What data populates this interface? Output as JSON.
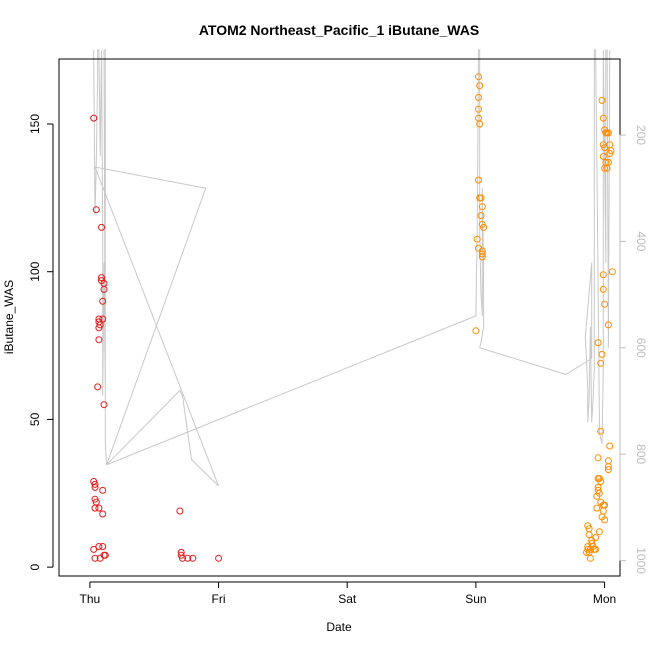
{
  "chart_data": {
    "type": "scatter",
    "title": "ATOM2 Northeast_Pacific_1 iButane_WAS",
    "xlabel": "Date",
    "ylabel": "iButane_WAS",
    "x_unit": "days",
    "x_ticks": [
      {
        "label": "Thu",
        "x": 0
      },
      {
        "label": "Fri",
        "x": 1
      },
      {
        "label": "Sat",
        "x": 2
      },
      {
        "label": "Sun",
        "x": 3
      },
      {
        "label": "Mon",
        "x": 4
      }
    ],
    "y_ticks": [
      0,
      50,
      100,
      150
    ],
    "xlim": [
      -0.24,
      4.12
    ],
    "ylim": [
      -3,
      172
    ],
    "y2_ticks": [
      200,
      400,
      600,
      800,
      1000
    ],
    "y2lim": [
      1029,
      57
    ],
    "y2_reversed": true,
    "grid": false,
    "series": [
      {
        "color": "#e41a1c",
        "marker": "open-circle",
        "points": [
          [
            0.03,
            152
          ],
          [
            0.05,
            121
          ],
          [
            0.06,
            61
          ],
          [
            0.07,
            84
          ],
          [
            0.07,
            83
          ],
          [
            0.08,
            82
          ],
          [
            0.07,
            81
          ],
          [
            0.07,
            77
          ],
          [
            0.09,
            98
          ],
          [
            0.09,
            97
          ],
          [
            0.11,
            96
          ],
          [
            0.11,
            94
          ],
          [
            0.1,
            90
          ],
          [
            0.1,
            84
          ],
          [
            0.09,
            115
          ],
          [
            0.11,
            55
          ],
          [
            0.03,
            29
          ],
          [
            0.04,
            28
          ],
          [
            0.04,
            27
          ],
          [
            0.04,
            23
          ],
          [
            0.05,
            22
          ],
          [
            0.04,
            20
          ],
          [
            0.07,
            20
          ],
          [
            0.1,
            18
          ],
          [
            0.1,
            26
          ],
          [
            0.03,
            6
          ],
          [
            0.04,
            3
          ],
          [
            0.07,
            7
          ],
          [
            0.1,
            7
          ],
          [
            0.08,
            3
          ],
          [
            0.11,
            4
          ],
          [
            0.12,
            4
          ],
          [
            0.7,
            19
          ],
          [
            0.71,
            5
          ],
          [
            0.71,
            4
          ],
          [
            0.72,
            3
          ],
          [
            0.76,
            3
          ],
          [
            0.8,
            3
          ],
          [
            1.0,
            3
          ]
        ]
      },
      {
        "color": "#ff8c00",
        "marker": "open-circle",
        "points": [
          [
            3.0,
            80
          ],
          [
            3.02,
            166
          ],
          [
            3.02,
            159
          ],
          [
            3.03,
            163
          ],
          [
            3.02,
            155
          ],
          [
            3.02,
            152
          ],
          [
            3.03,
            150
          ],
          [
            3.02,
            131
          ],
          [
            3.04,
            125
          ],
          [
            3.03,
            125
          ],
          [
            3.05,
            122
          ],
          [
            3.04,
            119
          ],
          [
            3.05,
            116
          ],
          [
            3.06,
            115
          ],
          [
            3.01,
            111
          ],
          [
            3.02,
            108
          ],
          [
            3.05,
            107
          ],
          [
            3.05,
            106
          ],
          [
            3.05,
            105
          ],
          [
            3.86,
            5
          ],
          [
            3.87,
            6
          ],
          [
            3.87,
            7
          ],
          [
            3.88,
            5
          ],
          [
            3.89,
            3
          ],
          [
            3.89,
            6
          ],
          [
            3.9,
            8
          ],
          [
            3.91,
            7
          ],
          [
            3.92,
            6
          ],
          [
            3.93,
            6
          ],
          [
            3.87,
            14
          ],
          [
            3.88,
            13
          ],
          [
            3.88,
            11
          ],
          [
            3.9,
            9
          ],
          [
            3.93,
            10
          ],
          [
            3.94,
            20
          ],
          [
            3.94,
            24
          ],
          [
            3.95,
            26
          ],
          [
            3.95,
            27
          ],
          [
            3.96,
            25
          ],
          [
            3.95,
            30
          ],
          [
            3.96,
            30
          ],
          [
            3.95,
            37
          ],
          [
            3.97,
            29
          ],
          [
            3.97,
            22
          ],
          [
            3.98,
            17
          ],
          [
            3.99,
            19
          ],
          [
            3.99,
            21
          ],
          [
            4.0,
            16
          ],
          [
            4.0,
            21
          ],
          [
            3.96,
            12
          ],
          [
            3.97,
            46
          ],
          [
            4.03,
            33
          ],
          [
            4.03,
            34
          ],
          [
            4.03,
            36
          ],
          [
            4.04,
            41
          ],
          [
            3.95,
            76
          ],
          [
            3.97,
            69
          ],
          [
            3.98,
            72
          ],
          [
            4.03,
            82
          ],
          [
            4.06,
            100
          ],
          [
            3.99,
            99
          ],
          [
            3.99,
            94
          ],
          [
            4.0,
            89
          ],
          [
            3.98,
            158
          ],
          [
            3.99,
            152
          ],
          [
            4.0,
            148
          ],
          [
            4.01,
            147
          ],
          [
            4.02,
            147
          ],
          [
            4.03,
            147
          ],
          [
            4.04,
            143
          ],
          [
            4.05,
            141
          ],
          [
            4.04,
            140
          ],
          [
            4.0,
            142
          ],
          [
            3.99,
            143
          ],
          [
            4.01,
            137
          ],
          [
            4.02,
            135
          ],
          [
            4.03,
            137
          ],
          [
            3.99,
            139
          ],
          [
            4.0,
            135
          ]
        ]
      }
    ],
    "altitude_trace": {
      "color": "#c8c8c8",
      "axis": "right",
      "points": [
        [
          0.03,
          40
        ],
        [
          0.04,
          350
        ],
        [
          0.05,
          250
        ],
        [
          0.06,
          100
        ],
        [
          0.06,
          40
        ],
        [
          0.07,
          40
        ],
        [
          0.08,
          240
        ],
        [
          0.09,
          40
        ],
        [
          0.09,
          40
        ],
        [
          0.1,
          380
        ],
        [
          0.1,
          620
        ],
        [
          0.1,
          690
        ],
        [
          0.11,
          440
        ],
        [
          0.12,
          680
        ],
        [
          0.11,
          40
        ],
        [
          0.12,
          40
        ],
        [
          0.12,
          780
        ],
        [
          0.13,
          820
        ],
        [
          0.9,
          300
        ],
        [
          0.04,
          260
        ],
        [
          1.0,
          860
        ],
        [
          0.79,
          810
        ],
        [
          0.72,
          690
        ],
        [
          0.7,
          680
        ],
        [
          0.13,
          820
        ],
        [
          3.0,
          540
        ],
        [
          3.01,
          380
        ],
        [
          3.02,
          40
        ],
        [
          3.03,
          40
        ],
        [
          3.03,
          380
        ],
        [
          3.04,
          500
        ],
        [
          3.05,
          540
        ],
        [
          3.05,
          300
        ],
        [
          3.06,
          440
        ],
        [
          3.06,
          560
        ],
        [
          3.04,
          590
        ],
        [
          3.03,
          600
        ],
        [
          3.7,
          650
        ],
        [
          3.9,
          620
        ],
        [
          3.9,
          440
        ],
        [
          3.85,
          580
        ],
        [
          3.86,
          620
        ],
        [
          3.87,
          680
        ],
        [
          3.87,
          740
        ],
        [
          3.88,
          700
        ],
        [
          3.89,
          560
        ],
        [
          3.9,
          740
        ],
        [
          3.91,
          700
        ],
        [
          3.92,
          640
        ],
        [
          3.92,
          40
        ],
        [
          3.93,
          40
        ],
        [
          3.94,
          240
        ],
        [
          3.95,
          480
        ],
        [
          3.96,
          740
        ],
        [
          3.96,
          760
        ],
        [
          3.98,
          780
        ],
        [
          3.99,
          640
        ],
        [
          3.99,
          40
        ],
        [
          4.0,
          240
        ],
        [
          4.01,
          440
        ],
        [
          4.01,
          40
        ],
        [
          4.02,
          40
        ],
        [
          4.03,
          600
        ],
        [
          4.04,
          40
        ]
      ]
    }
  }
}
